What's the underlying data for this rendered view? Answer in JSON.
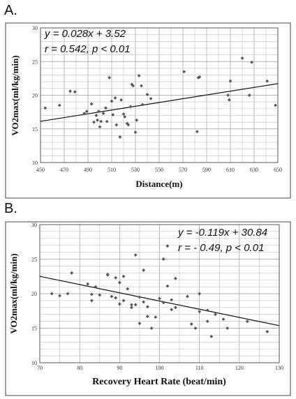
{
  "panels": {
    "a_label": "A.",
    "b_label": "B."
  },
  "chart_data": [
    {
      "type": "scatter",
      "xlabel": "Distance(m)",
      "ylabel": "VO2max(ml/kg/min)",
      "xlim": [
        450,
        650
      ],
      "ylim": [
        10,
        30
      ],
      "xticks": [
        "450",
        "470",
        "490",
        "510",
        "530",
        "550",
        "570",
        "590",
        "610",
        "630",
        "650"
      ],
      "yticks": [
        "10",
        "15",
        "20",
        "25",
        "30"
      ],
      "equation": "y = 0.028x + 3.52",
      "stats": "r = 0.542, p < 0.01",
      "trendline": {
        "slope": 0.028,
        "intercept": 3.52
      },
      "grid": true,
      "x": [
        454,
        466,
        475,
        479,
        487,
        489,
        493,
        495,
        497,
        498,
        499,
        500,
        501,
        503,
        505,
        506,
        508,
        510,
        511,
        513,
        514,
        517,
        518,
        520,
        521,
        523,
        524,
        526,
        527,
        528,
        530,
        531,
        533,
        535,
        536,
        540,
        543,
        571,
        582,
        583,
        584,
        608,
        609,
        610,
        620,
        626,
        628,
        641,
        648
      ],
      "y": [
        18.1,
        18.5,
        20.6,
        20.5,
        17.3,
        17.6,
        18.7,
        16.0,
        17.0,
        16.3,
        17.6,
        15.3,
        16.1,
        17.3,
        18.1,
        16.1,
        22.6,
        19.1,
        17.1,
        19.6,
        15.6,
        13.8,
        19.3,
        17.2,
        16.8,
        15.8,
        15.6,
        18.3,
        21.6,
        21.4,
        14.5,
        16.3,
        22.9,
        21.4,
        18.6,
        20.1,
        19.5,
        23.5,
        14.6,
        22.6,
        22.7,
        20.0,
        19.3,
        22.1,
        25.5,
        20.0,
        24.9,
        22.1,
        18.5
      ]
    },
    {
      "type": "scatter",
      "xlabel": "Recovery Heart Rate (beat/min)",
      "ylabel": "VO2max(ml/kg/min)",
      "xlim": [
        70,
        130
      ],
      "ylim": [
        10,
        30
      ],
      "xticks": [
        "70",
        "80",
        "90",
        "100",
        "110",
        "120",
        "130"
      ],
      "yticks": [
        "10",
        "15",
        "20",
        "25",
        "30"
      ],
      "equation": "y = -0.119x + 30.84",
      "stats": "r = - 0.49,  p < 0.01",
      "trendline": {
        "slope": -0.119,
        "intercept": 30.84
      },
      "grid": true,
      "x": [
        73,
        75,
        77,
        78,
        82,
        83,
        83,
        84,
        85,
        87,
        87,
        88,
        89,
        89,
        90,
        90,
        91,
        91,
        92,
        93,
        93,
        94,
        94,
        95,
        95,
        96,
        96,
        97,
        97,
        98,
        99,
        100,
        101,
        101,
        102,
        102,
        103,
        103,
        104,
        104,
        107,
        108,
        109,
        110,
        110,
        112,
        112,
        113,
        114,
        116,
        117,
        122,
        127
      ],
      "y": [
        20.0,
        19.7,
        20.0,
        23.0,
        21.4,
        19.9,
        19.0,
        21.0,
        19.8,
        22.7,
        22.8,
        19.6,
        19.4,
        22.3,
        18.5,
        21.6,
        22.5,
        19.0,
        20.7,
        18.4,
        18.0,
        18.4,
        25.6,
        19.5,
        15.7,
        18.8,
        23.4,
        16.7,
        18.1,
        15.0,
        16.6,
        19.3,
        25.0,
        18.7,
        21.1,
        26.9,
        17.7,
        19.1,
        18.0,
        22.2,
        19.6,
        15.6,
        15.0,
        20.0,
        17.4,
        16.0,
        17.6,
        13.8,
        17.0,
        16.3,
        15.0,
        16.0,
        14.5
      ]
    }
  ]
}
